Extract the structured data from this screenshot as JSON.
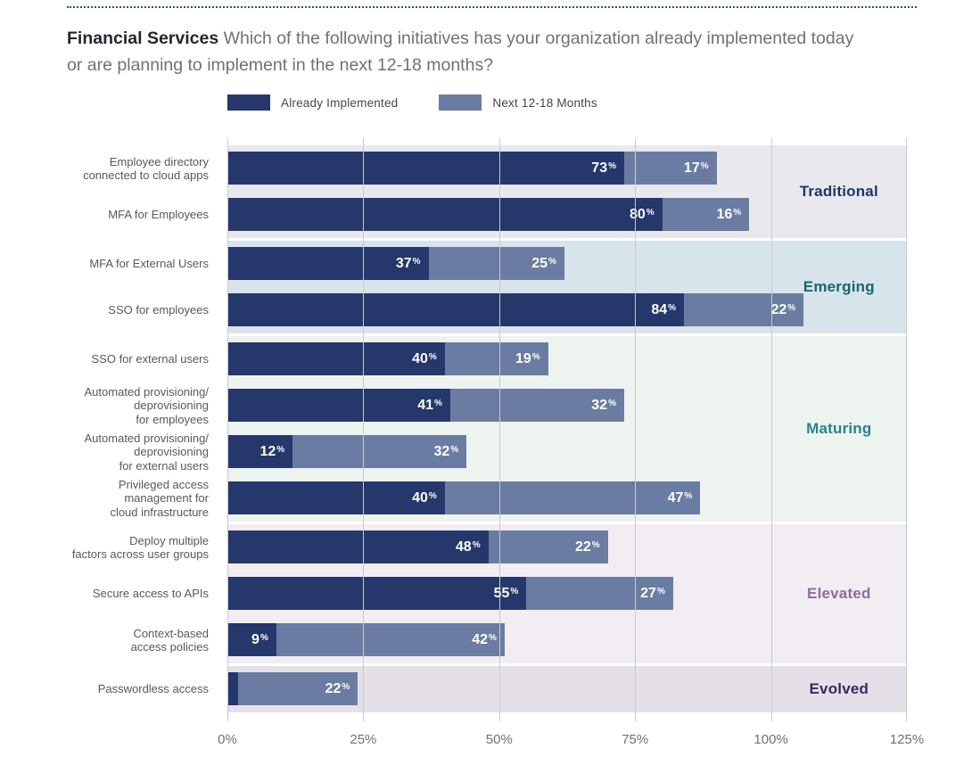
{
  "page": {
    "title_bold": "Financial Services",
    "title_rest": " Which of the following initiatives has your organization already implemented today or are planning to implement in the next 12-18 months?"
  },
  "legend": [
    {
      "label": "Already Implemented",
      "color": "#25376b"
    },
    {
      "label": "Next 12-18 Months",
      "color": "#6b7ca3"
    }
  ],
  "chart_data": {
    "type": "bar",
    "orientation": "horizontal",
    "stacked": true,
    "series_names": [
      "Already Implemented",
      "Next 12-18 Months"
    ],
    "series_colors": {
      "implemented": "#25376b",
      "next": "#6b7ca3"
    },
    "xlim": [
      0,
      125
    ],
    "x_ticks": [
      "0%",
      "25%",
      "50%",
      "75%",
      "100%",
      "125%"
    ],
    "x_tick_values": [
      0,
      25,
      50,
      75,
      100,
      125
    ],
    "grid": true,
    "value_suffix": "%",
    "groups": [
      {
        "name": "Traditional",
        "label_color": "#1c3668",
        "band_color": "#e9e8ef",
        "rows": [
          {
            "label": "Employee directory\nconnected to cloud apps",
            "implemented": 73,
            "next": 17
          },
          {
            "label": "MFA for Employees",
            "implemented": 80,
            "next": 16
          }
        ]
      },
      {
        "name": "Emerging",
        "label_color": "#17666b",
        "band_color": "#d8e4eb",
        "rows": [
          {
            "label": "MFA for External Users",
            "implemented": 37,
            "next": 25
          },
          {
            "label": "SSO for employees",
            "implemented": 84,
            "next": 22
          }
        ]
      },
      {
        "name": "Maturing",
        "label_color": "#2a818a",
        "band_color": "#edf4f0",
        "rows": [
          {
            "label": "SSO for external users",
            "implemented": 40,
            "next": 19
          },
          {
            "label": "Automated provisioning/\ndeprovisioning\nfor employees",
            "implemented": 41,
            "next": 32
          },
          {
            "label": "Automated provisioning/\ndeprovisioning\nfor external users",
            "implemented": 12,
            "next": 32
          },
          {
            "label": "Privileged access\nmanagement for\ncloud infrastructure",
            "implemented": 40,
            "next": 47
          }
        ]
      },
      {
        "name": "Elevated",
        "label_color": "#8d6b9e",
        "band_color": "#f2edf2",
        "rows": [
          {
            "label": "Deploy multiple\nfactors across user groups",
            "implemented": 48,
            "next": 22
          },
          {
            "label": "Secure access to APIs",
            "implemented": 55,
            "next": 27
          },
          {
            "label": "Context-based\naccess policies",
            "implemented": 9,
            "next": 42
          }
        ]
      },
      {
        "name": "Evolved",
        "label_color": "#322a61",
        "band_color": "#e5e0e8",
        "rows": [
          {
            "label": "Passwordless access",
            "implemented": 2,
            "next": 22
          }
        ]
      }
    ]
  }
}
